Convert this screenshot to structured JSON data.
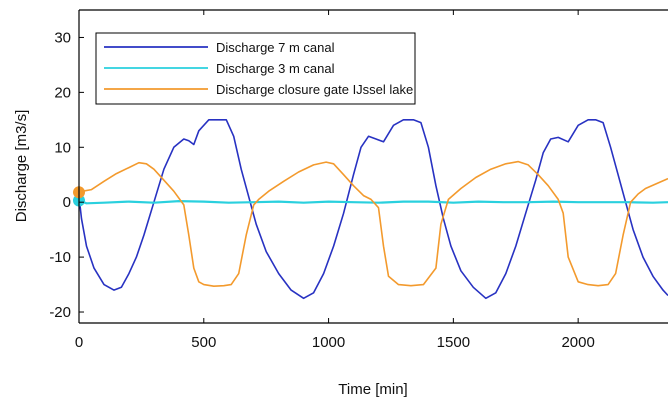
{
  "chart_data": {
    "type": "line",
    "xlabel": "Time [min]",
    "ylabel": "Discharge [m3/s]",
    "xlim": [
      0,
      2360
    ],
    "ylim": [
      -22,
      35
    ],
    "x_ticks": [
      "0",
      "500",
      "1000",
      "1500",
      "2000"
    ],
    "y_ticks": [
      "-20",
      "-10",
      "0",
      "10",
      "20",
      "30"
    ],
    "x_tick_values": [
      0,
      500,
      1000,
      1500,
      2000
    ],
    "y_tick_values": [
      -20,
      -10,
      0,
      10,
      20,
      30
    ],
    "grid": false,
    "legend_placement": "top-left",
    "series": [
      {
        "name": "Discharge 7 m canal",
        "color": "#2832c2",
        "x": [
          0,
          10,
          30,
          60,
          100,
          140,
          170,
          200,
          230,
          260,
          300,
          340,
          380,
          420,
          440,
          460,
          480,
          520,
          560,
          590,
          620,
          650,
          680,
          710,
          750,
          800,
          850,
          900,
          940,
          980,
          1020,
          1060,
          1100,
          1130,
          1160,
          1190,
          1220,
          1260,
          1300,
          1340,
          1370,
          1400,
          1430,
          1460,
          1490,
          1530,
          1580,
          1630,
          1670,
          1710,
          1750,
          1790,
          1830,
          1860,
          1890,
          1920,
          1960,
          2000,
          2040,
          2070,
          2100,
          2130,
          2160,
          2190,
          2220,
          2260,
          2300,
          2340,
          2360
        ],
        "y": [
          1,
          -3,
          -8,
          -12,
          -15,
          -16,
          -15.5,
          -13,
          -10,
          -6,
          0,
          6,
          10,
          11.5,
          11.2,
          10.5,
          13,
          15,
          15,
          15,
          12,
          6,
          1,
          -4,
          -9,
          -13,
          -16,
          -17.5,
          -16.5,
          -13,
          -8,
          -2,
          5,
          10,
          12,
          11.5,
          11,
          14,
          15,
          15,
          14.5,
          10,
          3,
          -3,
          -8,
          -12.5,
          -15.5,
          -17.5,
          -16.5,
          -13,
          -8,
          -2,
          4,
          9,
          11.5,
          11.8,
          11,
          14,
          15,
          15,
          14.5,
          10,
          5,
          0,
          -5,
          -10,
          -13.5,
          -16,
          -17
        ]
      },
      {
        "name": "Discharge 3 m canal",
        "color": "#2ad0de",
        "x": [
          0,
          30,
          100,
          200,
          300,
          400,
          500,
          600,
          700,
          800,
          900,
          1000,
          1100,
          1200,
          1300,
          1400,
          1500,
          1600,
          1700,
          1800,
          1900,
          2000,
          2100,
          2200,
          2300,
          2360
        ],
        "y": [
          0.3,
          -0.2,
          -0.1,
          0.1,
          -0.1,
          0.2,
          0.1,
          -0.1,
          0,
          0.1,
          -0.1,
          0.1,
          0,
          -0.1,
          0.1,
          0.1,
          -0.1,
          0.1,
          0,
          0,
          0.1,
          0,
          0,
          0,
          -0.1,
          0
        ]
      },
      {
        "name": "Discharge closure gate IJssel lake",
        "color": "#f39a2d",
        "x": [
          0,
          15,
          50,
          100,
          150,
          200,
          240,
          270,
          300,
          340,
          380,
          420,
          440,
          460,
          480,
          500,
          540,
          580,
          610,
          640,
          670,
          700,
          720,
          760,
          820,
          880,
          940,
          990,
          1020,
          1060,
          1100,
          1140,
          1170,
          1200,
          1220,
          1240,
          1280,
          1330,
          1380,
          1430,
          1450,
          1480,
          1530,
          1590,
          1650,
          1710,
          1760,
          1800,
          1840,
          1880,
          1920,
          1940,
          1960,
          2000,
          2040,
          2080,
          2120,
          2150,
          2180,
          2210,
          2240,
          2270,
          2320,
          2360
        ],
        "y": [
          1.8,
          2,
          2.3,
          3.8,
          5.2,
          6.3,
          7.2,
          7,
          6,
          4,
          2,
          -0.5,
          -6,
          -12,
          -14.5,
          -15,
          -15.3,
          -15.2,
          -15,
          -13,
          -6,
          -0.5,
          0.5,
          2,
          3.8,
          5.5,
          6.8,
          7.3,
          7,
          5,
          3,
          1.2,
          0.5,
          -1,
          -8,
          -13.5,
          -15,
          -15.2,
          -15,
          -12,
          -4,
          0.5,
          2.5,
          4.5,
          6,
          7,
          7.4,
          6.8,
          5,
          3,
          0.5,
          -2,
          -10,
          -14.5,
          -15,
          -15.2,
          -15,
          -13,
          -6,
          0,
          1.5,
          2.5,
          3.5,
          4.3
        ]
      }
    ]
  }
}
